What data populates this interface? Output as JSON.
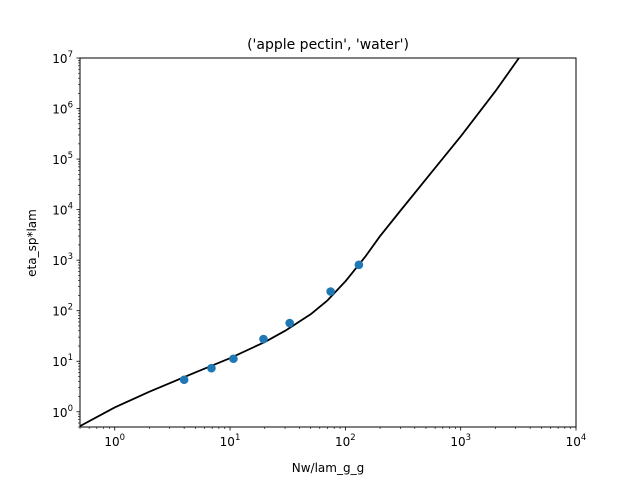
{
  "chart_data": {
    "type": "scatter",
    "title": "('apple pectin', 'water')",
    "xlabel": "Nw/lam_g_g",
    "ylabel": "eta_sp*lam",
    "xscale": "log",
    "yscale": "log",
    "xlim": [
      0.5,
      10000
    ],
    "ylim": [
      0.5,
      10000000
    ],
    "grid": false,
    "xticks": [
      {
        "base": "10",
        "exp": "0",
        "value": 1
      },
      {
        "base": "10",
        "exp": "1",
        "value": 10
      },
      {
        "base": "10",
        "exp": "2",
        "value": 100
      },
      {
        "base": "10",
        "exp": "3",
        "value": 1000
      },
      {
        "base": "10",
        "exp": "4",
        "value": 10000
      }
    ],
    "yticks": [
      {
        "base": "10",
        "exp": "0",
        "value": 1
      },
      {
        "base": "10",
        "exp": "1",
        "value": 10
      },
      {
        "base": "10",
        "exp": "2",
        "value": 100
      },
      {
        "base": "10",
        "exp": "3",
        "value": 1000
      },
      {
        "base": "10",
        "exp": "4",
        "value": 10000
      },
      {
        "base": "10",
        "exp": "5",
        "value": 100000
      },
      {
        "base": "10",
        "exp": "6",
        "value": 1000000
      },
      {
        "base": "10",
        "exp": "7",
        "value": 10000000
      }
    ],
    "series": [
      {
        "kind": "scatter",
        "color": "#1f77b4",
        "points": [
          {
            "x": 4.0,
            "y": 4.3
          },
          {
            "x": 6.9,
            "y": 7.3
          },
          {
            "x": 10.7,
            "y": 11.2
          },
          {
            "x": 19.5,
            "y": 27.5
          },
          {
            "x": 32.9,
            "y": 57.0
          },
          {
            "x": 74.5,
            "y": 240.0
          },
          {
            "x": 131.0,
            "y": 810.0
          }
        ]
      },
      {
        "kind": "line",
        "color": "#000000",
        "points": [
          {
            "x": 0.5,
            "y": 0.52
          },
          {
            "x": 1.0,
            "y": 1.22
          },
          {
            "x": 2.0,
            "y": 2.5
          },
          {
            "x": 5.0,
            "y": 6.0
          },
          {
            "x": 10.0,
            "y": 11.5
          },
          {
            "x": 20.0,
            "y": 24.0
          },
          {
            "x": 30.0,
            "y": 40.0
          },
          {
            "x": 50.0,
            "y": 85.0
          },
          {
            "x": 70.0,
            "y": 160.0
          },
          {
            "x": 100.0,
            "y": 380.0
          },
          {
            "x": 150.0,
            "y": 1200.0
          },
          {
            "x": 200.0,
            "y": 3000.0
          },
          {
            "x": 300.0,
            "y": 9500.0
          },
          {
            "x": 500.0,
            "y": 40000.0
          },
          {
            "x": 1000.0,
            "y": 280000.0
          },
          {
            "x": 2000.0,
            "y": 2200000.0
          },
          {
            "x": 3200.0,
            "y": 10000000.0
          }
        ]
      }
    ]
  }
}
